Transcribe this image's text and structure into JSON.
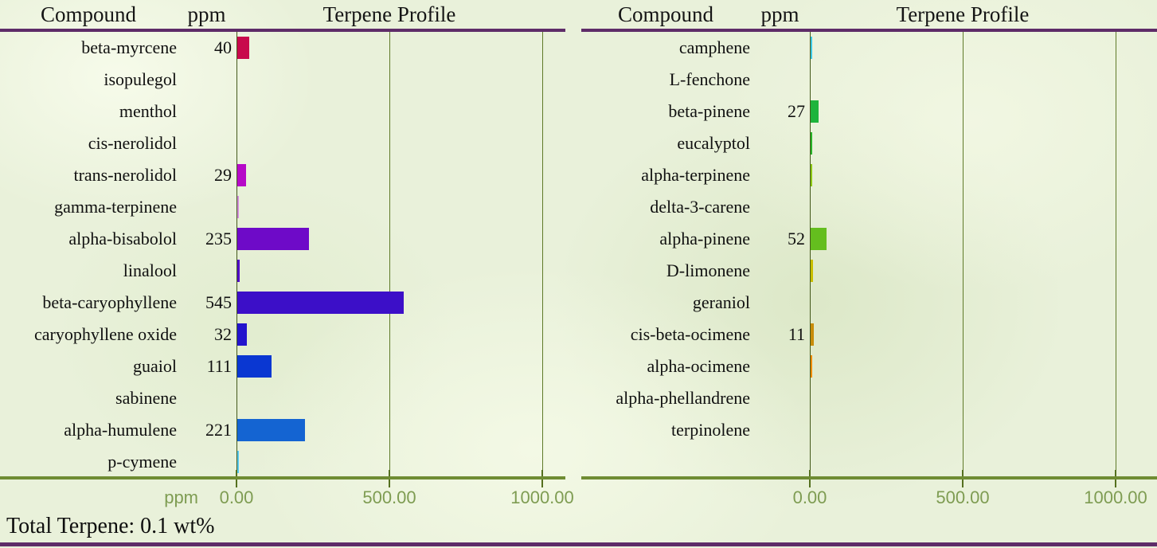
{
  "style": {
    "background": "#E9F1DA",
    "accent_purple": "#5E2C68",
    "axis_zero_line": "#44591B",
    "gridline": "#5F7A29",
    "axis_thick_line": "#6F8C33",
    "tick_label_color": "#7E9C52",
    "text_color": "#101010"
  },
  "footer": {
    "total_terpene": "Total Terpene: 0.1 wt%"
  },
  "chart_data": [
    {
      "type": "bar",
      "orientation": "horizontal",
      "title": "Terpene Profile",
      "headers": {
        "compound": "Compound",
        "ppm": "ppm",
        "profile": "Terpene Profile"
      },
      "xlabel": "ppm",
      "show_xlabel": true,
      "xlim": [
        0,
        1000
      ],
      "x_ticks": [
        "0.00",
        "500.00",
        "1000.00"
      ],
      "x_tick_values": [
        0,
        500,
        1000
      ],
      "grid": true,
      "categories": [
        "beta-myrcene",
        "isopulegol",
        "menthol",
        "cis-nerolidol",
        "trans-nerolidol",
        "gamma-terpinene",
        "alpha-bisabolol",
        "linalool",
        "beta-caryophyllene",
        "caryophyllene oxide",
        "guaiol",
        "sabinene",
        "alpha-humulene",
        "p-cymene"
      ],
      "values": [
        40,
        0,
        0,
        0,
        29,
        1,
        235,
        8,
        545,
        32,
        111,
        0,
        221,
        2
      ],
      "value_labels": [
        "40",
        "",
        "",
        "",
        "29",
        "",
        "235",
        "",
        "545",
        "32",
        "111",
        "",
        "221",
        ""
      ],
      "bar_colors": [
        "#C8094C",
        "",
        "",
        "",
        "#B609C8",
        "#D28CDC",
        "#6E0AC8",
        "#500AC8",
        "#3C0FC8",
        "#2314CD",
        "#0A37D2",
        "",
        "#1464D2",
        "#55C8F0"
      ]
    },
    {
      "type": "bar",
      "orientation": "horizontal",
      "title": "Terpene Profile",
      "headers": {
        "compound": "Compound",
        "ppm": "ppm",
        "profile": "Terpene Profile"
      },
      "xlabel": "ppm",
      "show_xlabel": false,
      "xlim": [
        0,
        1000
      ],
      "x_ticks": [
        "0.00",
        "500.00",
        "1000.00"
      ],
      "x_tick_values": [
        0,
        500,
        1000
      ],
      "grid": true,
      "categories": [
        "camphene",
        "L-fenchone",
        "beta-pinene",
        "eucalyptol",
        "alpha-terpinene",
        "delta-3-carene",
        "alpha-pinene",
        "D-limonene",
        "geraniol",
        "cis-beta-ocimene",
        "alpha-ocimene",
        "alpha-phellandrene",
        "terpinolene"
      ],
      "values": [
        2,
        0,
        27,
        3,
        1,
        0,
        52,
        9,
        0,
        11,
        3,
        0,
        0
      ],
      "value_labels": [
        "",
        "",
        "27",
        "",
        "",
        "",
        "52",
        "",
        "",
        "11",
        "",
        "",
        ""
      ],
      "bar_colors": [
        "#3CC8E6",
        "",
        "#1EB43C",
        "#28B428",
        "#8CC814",
        "",
        "#64BE1E",
        "#C8BE00",
        "",
        "#C88C0A",
        "#F08C00",
        "",
        ""
      ]
    }
  ]
}
